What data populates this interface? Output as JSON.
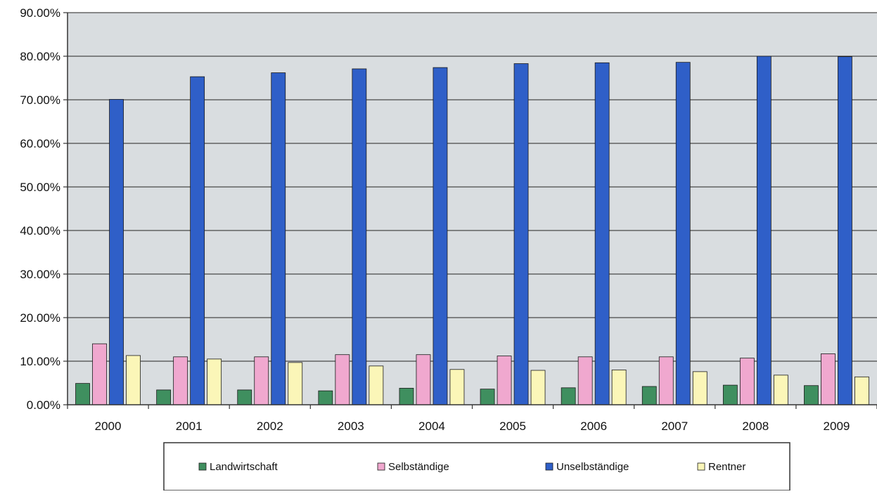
{
  "chart_data": {
    "type": "bar",
    "categories": [
      "2000",
      "2001",
      "2002",
      "2003",
      "2004",
      "2005",
      "2006",
      "2007",
      "2008",
      "2009"
    ],
    "series": [
      {
        "name": "Landwirtschaft",
        "color": "#3f8f5f",
        "values": [
          4.9,
          3.4,
          3.4,
          3.2,
          3.8,
          3.6,
          3.9,
          4.2,
          4.5,
          4.4
        ]
      },
      {
        "name": "Selbständige",
        "color": "#f0a8cf",
        "values": [
          14.0,
          11.0,
          11.0,
          11.5,
          11.5,
          11.2,
          11.0,
          11.0,
          10.7,
          11.7
        ]
      },
      {
        "name": "Unselbständige",
        "color": "#2f5fc8",
        "values": [
          70.1,
          75.3,
          76.2,
          77.1,
          77.4,
          78.3,
          78.5,
          78.6,
          80.0,
          79.9
        ]
      },
      {
        "name": "Rentner",
        "color": "#fbf6b8",
        "values": [
          11.3,
          10.5,
          9.7,
          8.9,
          8.1,
          7.9,
          8.0,
          7.6,
          6.8,
          6.4
        ]
      }
    ],
    "y_ticks": [
      "0.00%",
      "10.00%",
      "20.00%",
      "30.00%",
      "40.00%",
      "50.00%",
      "60.00%",
      "70.00%",
      "80.00%",
      "90.00%"
    ],
    "ylim": [
      0,
      90
    ],
    "grid": true,
    "plot_background": "#d9dde0",
    "legend_position": "bottom"
  }
}
